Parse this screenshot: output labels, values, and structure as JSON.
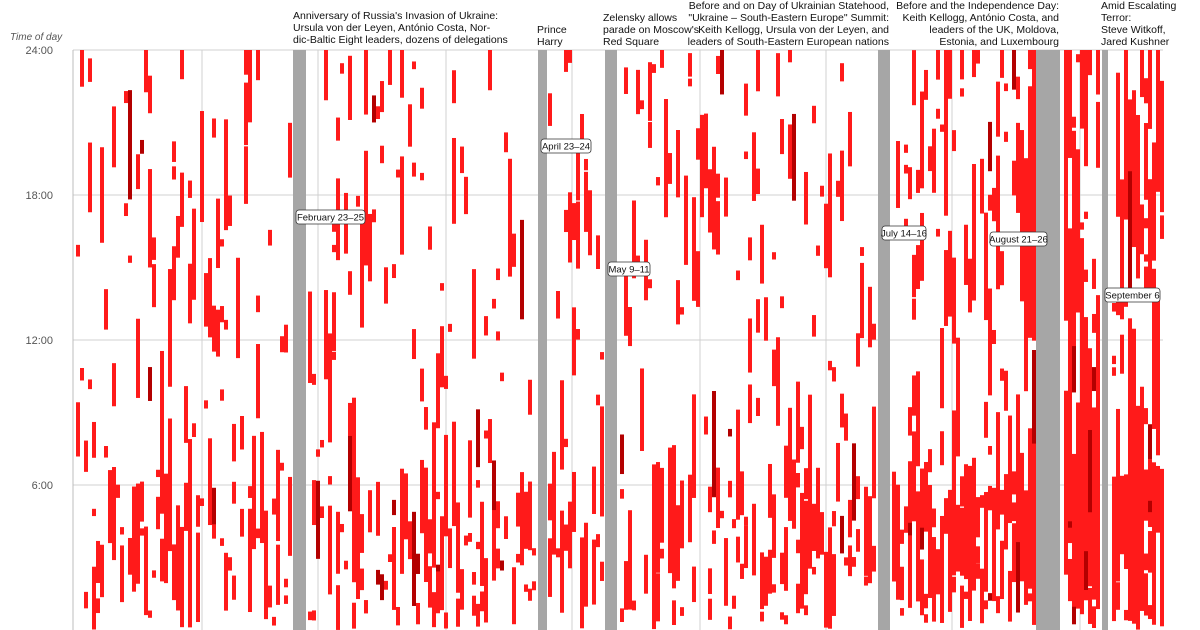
{
  "chart_data": {
    "type": "heatmap",
    "title": "",
    "ylabel": "Time of day",
    "ylim": [
      0,
      24
    ],
    "y_ticks": [
      {
        "value": 24,
        "label": "24:00"
      },
      {
        "value": 18,
        "label": "18:00"
      },
      {
        "value": 12,
        "label": "12:00"
      },
      {
        "value": 6,
        "label": "6:00"
      }
    ],
    "grid": true,
    "colors": {
      "alert": "#ff1a1a",
      "alert_dark": "#b30000",
      "quiet": "#a6a6a6",
      "grid": "#d0d0d0"
    },
    "quiet_periods": [
      {
        "label": "February 23–25",
        "annotation": [
          "Anniversary of Russia's Invasion of Ukraine:",
          "Ursula von der Leyen, António Costa, Nor-",
          "dic-Baltic Eight leaders, dozens of delegations"
        ],
        "anchor": "start"
      },
      {
        "label": "April 23–24",
        "annotation": [
          "Prince",
          "Harry"
        ],
        "anchor": "start"
      },
      {
        "label": "May 9–11",
        "annotation": [
          "Zelensky allows",
          "parade on Moscow's",
          "Red Square"
        ],
        "anchor": "start"
      },
      {
        "label": "July 14–16",
        "annotation": [
          "Before and on Day of Ukrainian Statehood,",
          "\"Ukraine – South-Eastern Europe\" Summit:",
          "Keith Kellogg, Ursula von der Leyen, and",
          "leaders of South-Eastern European nations"
        ],
        "anchor": "end"
      },
      {
        "label": "August 21–26",
        "annotation": [
          "Before and the Independence Day:",
          "Keith Kellogg, António Costa, and",
          "leaders of the UK, Moldova,",
          "Estonia, and Luxembourg"
        ],
        "anchor": "end"
      },
      {
        "label": "September 6",
        "annotation": [
          "Amid Escalating",
          "Terror:",
          "Steve Witkoff,",
          "Jared Kushner"
        ],
        "anchor": "start"
      }
    ]
  }
}
